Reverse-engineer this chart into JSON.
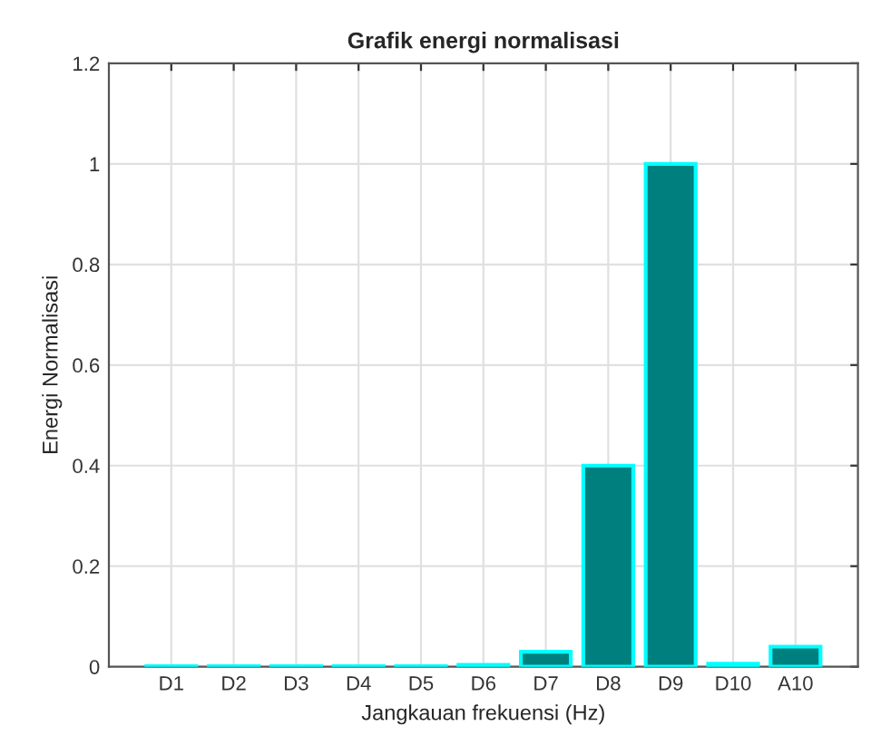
{
  "chart_data": {
    "type": "bar",
    "title": "Grafik energi normalisasi",
    "xlabel": "Jangkauan frekuensi (Hz)",
    "ylabel": "Energi Normalisasi",
    "categories": [
      "D1",
      "D2",
      "D3",
      "D4",
      "D5",
      "D6",
      "D7",
      "D8",
      "D9",
      "D10",
      "A10"
    ],
    "values": [
      0.001,
      0.001,
      0.001,
      0.001,
      0.001,
      0.004,
      0.03,
      0.4,
      1,
      0.006,
      0.04
    ],
    "color": "#007f7f",
    "ylim": [
      0,
      1.2
    ],
    "yticks": [
      0,
      0.2,
      0.4,
      0.6,
      0.8,
      1,
      1.2
    ],
    "grid": true
  }
}
